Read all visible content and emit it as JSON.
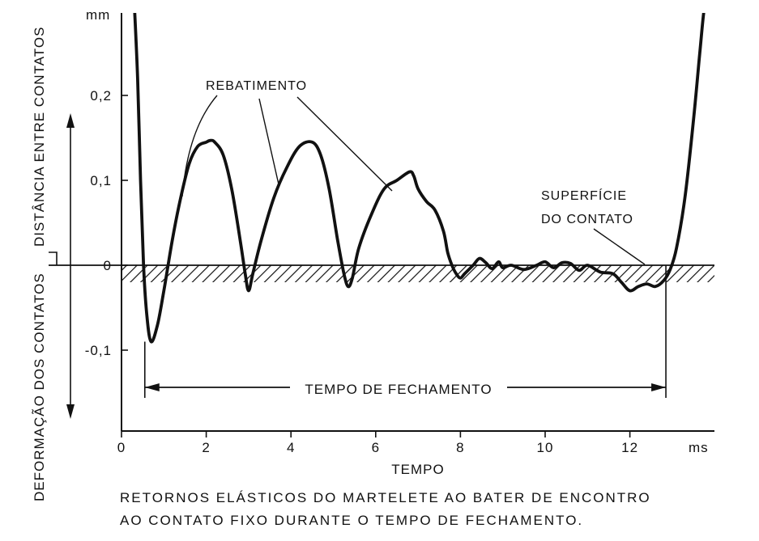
{
  "chart_data": {
    "type": "line",
    "x_unit": "ms",
    "y_unit": "mm",
    "xlabel": "TEMPO",
    "ylabel_upper": "DISTÂNCIA ENTRE CONTATOS",
    "ylabel_lower": "DEFORMAÇÃO DOS CONTATOS",
    "xlim": [
      0,
      14
    ],
    "ylim": [
      -0.2,
      0.3
    ],
    "x_ticks": [
      "0",
      "2",
      "4",
      "6",
      "8",
      "10",
      "12"
    ],
    "y_ticks": [
      {
        "value": 0.2,
        "label": "0,2"
      },
      {
        "value": 0.1,
        "label": "0,1"
      },
      {
        "value": 0,
        "label": "0"
      },
      {
        "value": -0.1,
        "label": "-0,1"
      }
    ],
    "series": [
      {
        "x": [
          0.3,
          0.38,
          0.45,
          0.52,
          0.6,
          0.7,
          0.85,
          1.0,
          1.2,
          1.4,
          1.6,
          1.8,
          2.0,
          2.1,
          2.2,
          2.4,
          2.6,
          2.8,
          2.92,
          3.0,
          3.1,
          3.3,
          3.6,
          3.9,
          4.2,
          4.5,
          4.7,
          4.9,
          5.1,
          5.25,
          5.35,
          5.45,
          5.6,
          5.9,
          6.2,
          6.5,
          6.8,
          6.9,
          7.0,
          7.2,
          7.4,
          7.6,
          7.7,
          7.8,
          7.9,
          8.0,
          8.1,
          8.3,
          8.45,
          8.6,
          8.75,
          8.9,
          9.0,
          9.2,
          9.5,
          9.8,
          10.0,
          10.2,
          10.4,
          10.6,
          10.8,
          11.0,
          11.3,
          11.6,
          11.8,
          12.0,
          12.2,
          12.4,
          12.6,
          12.8,
          12.95,
          13.1,
          13.3,
          13.5,
          13.65,
          13.75,
          13.82
        ],
        "y": [
          0.31,
          0.22,
          0.1,
          0.0,
          -0.06,
          -0.09,
          -0.07,
          -0.03,
          0.03,
          0.08,
          0.12,
          0.14,
          0.145,
          0.147,
          0.145,
          0.13,
          0.09,
          0.03,
          -0.01,
          -0.03,
          -0.01,
          0.03,
          0.08,
          0.115,
          0.14,
          0.145,
          0.13,
          0.09,
          0.03,
          -0.01,
          -0.025,
          -0.015,
          0.02,
          0.06,
          0.09,
          0.1,
          0.11,
          0.105,
          0.09,
          0.075,
          0.065,
          0.04,
          0.015,
          0.0,
          -0.01,
          -0.015,
          -0.01,
          0.0,
          0.008,
          0.003,
          -0.004,
          0.004,
          -0.003,
          0.0,
          -0.005,
          0.0,
          0.004,
          -0.003,
          0.003,
          0.002,
          -0.006,
          0.0,
          -0.008,
          -0.01,
          -0.02,
          -0.03,
          -0.025,
          -0.022,
          -0.025,
          -0.018,
          -0.005,
          0.02,
          0.08,
          0.17,
          0.25,
          0.3,
          0.31
        ]
      }
    ],
    "annotations": [
      {
        "text": "REBATIMENTO"
      },
      {
        "text": "SUPERFÍCIE"
      },
      {
        "text": "DO CONTATO"
      },
      {
        "text": "TEMPO DE FECHAMENTO",
        "from": 0.55,
        "to": 12.85
      }
    ],
    "contact_surface_band": [
      -0.02,
      0
    ],
    "grid": false
  },
  "caption": {
    "line1": "RETORNOS ELÁSTICOS DO MARTELETE AO BATER DE ENCONTRO",
    "line2": "AO CONTATO FIXO DURANTE O TEMPO DE FECHAMENTO."
  }
}
